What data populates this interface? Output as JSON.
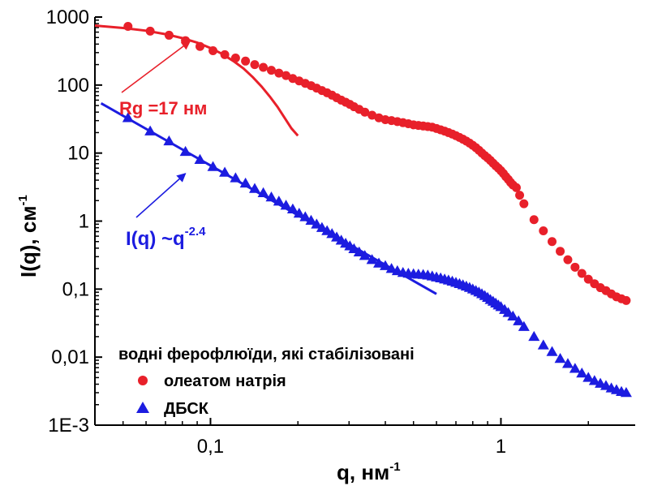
{
  "chart_data": {
    "type": "scatter",
    "x_scale": "log",
    "y_scale": "log",
    "xlim": [
      0.04,
      2.9
    ],
    "ylim": [
      0.001,
      1000
    ],
    "xlabel": "q, нм",
    "xlabel_sup": "-1",
    "ylabel": "I(q), см",
    "ylabel_sup": "-1",
    "x_ticks": [
      {
        "value": 0.1,
        "label": "0,1"
      },
      {
        "value": 1,
        "label": "1"
      }
    ],
    "y_ticks": [
      {
        "value": 1000,
        "label": "1000"
      },
      {
        "value": 100,
        "label": "100"
      },
      {
        "value": 10,
        "label": "10"
      },
      {
        "value": 1,
        "label": "1"
      },
      {
        "value": 0.1,
        "label": "0,1"
      },
      {
        "value": 0.01,
        "label": "0,01"
      },
      {
        "value": 0.001,
        "label": "1E-3"
      }
    ],
    "legend": {
      "title": "водні ферофлюїди, які стабілізовані",
      "position": "bottom-left"
    },
    "series": [
      {
        "name": "олеатом натрія",
        "marker": "circle",
        "color": "#e8202a",
        "x": [
          0.052,
          0.062,
          0.072,
          0.082,
          0.092,
          0.102,
          0.112,
          0.122,
          0.132,
          0.142,
          0.152,
          0.162,
          0.172,
          0.182,
          0.192,
          0.202,
          0.212,
          0.222,
          0.232,
          0.242,
          0.252,
          0.262,
          0.272,
          0.282,
          0.292,
          0.302,
          0.312,
          0.325,
          0.34,
          0.36,
          0.38,
          0.4,
          0.42,
          0.44,
          0.46,
          0.48,
          0.5,
          0.52,
          0.54,
          0.56,
          0.58,
          0.6,
          0.62,
          0.64,
          0.66,
          0.68,
          0.7,
          0.72,
          0.74,
          0.76,
          0.78,
          0.8,
          0.82,
          0.84,
          0.86,
          0.88,
          0.9,
          0.92,
          0.94,
          0.96,
          0.98,
          1.0,
          1.02,
          1.04,
          1.06,
          1.08,
          1.1,
          1.13,
          1.16,
          1.2,
          1.3,
          1.4,
          1.5,
          1.6,
          1.7,
          1.8,
          1.9,
          2.0,
          2.1,
          2.2,
          2.3,
          2.4,
          2.5,
          2.6,
          2.7
        ],
        "y": [
          730,
          620,
          540,
          450,
          370,
          320,
          280,
          250,
          225,
          200,
          182,
          165,
          150,
          138,
          125,
          115,
          106,
          98,
          90,
          83,
          77,
          71,
          65,
          60,
          56,
          52,
          48,
          44,
          40,
          36,
          33,
          31,
          30,
          29,
          28,
          27,
          26,
          25.5,
          25,
          24.5,
          24,
          23,
          22,
          21,
          20,
          19,
          18,
          17,
          16,
          15,
          14,
          13,
          12,
          11,
          10,
          9.2,
          8.5,
          7.8,
          7.1,
          6.5,
          6,
          5.5,
          5,
          4.5,
          4.1,
          3.7,
          3.4,
          3.1,
          2.4,
          1.8,
          1.05,
          0.72,
          0.5,
          0.36,
          0.27,
          0.21,
          0.17,
          0.14,
          0.12,
          0.105,
          0.095,
          0.085,
          0.077,
          0.072,
          0.068
        ]
      },
      {
        "name": "ДБСК",
        "marker": "triangle",
        "color": "#1c1ce0",
        "x": [
          0.052,
          0.062,
          0.072,
          0.082,
          0.092,
          0.102,
          0.112,
          0.122,
          0.132,
          0.142,
          0.152,
          0.162,
          0.172,
          0.182,
          0.192,
          0.202,
          0.212,
          0.222,
          0.232,
          0.242,
          0.252,
          0.262,
          0.272,
          0.282,
          0.292,
          0.302,
          0.312,
          0.325,
          0.34,
          0.36,
          0.38,
          0.4,
          0.42,
          0.44,
          0.46,
          0.48,
          0.5,
          0.52,
          0.54,
          0.56,
          0.58,
          0.6,
          0.62,
          0.64,
          0.66,
          0.68,
          0.7,
          0.72,
          0.74,
          0.76,
          0.78,
          0.8,
          0.82,
          0.84,
          0.86,
          0.88,
          0.9,
          0.92,
          0.94,
          0.96,
          0.98,
          1.0,
          1.03,
          1.06,
          1.1,
          1.15,
          1.2,
          1.3,
          1.4,
          1.5,
          1.6,
          1.7,
          1.8,
          1.9,
          2.0,
          2.1,
          2.2,
          2.3,
          2.4,
          2.5,
          2.6,
          2.7
        ],
        "y": [
          33,
          21,
          15,
          10.5,
          8,
          6.3,
          5.2,
          4.3,
          3.6,
          3,
          2.6,
          2.25,
          1.95,
          1.7,
          1.5,
          1.3,
          1.15,
          1.02,
          0.9,
          0.8,
          0.72,
          0.65,
          0.58,
          0.52,
          0.47,
          0.43,
          0.39,
          0.35,
          0.31,
          0.27,
          0.24,
          0.22,
          0.2,
          0.185,
          0.175,
          0.17,
          0.167,
          0.165,
          0.163,
          0.16,
          0.155,
          0.15,
          0.145,
          0.14,
          0.135,
          0.13,
          0.125,
          0.12,
          0.115,
          0.11,
          0.105,
          0.1,
          0.095,
          0.09,
          0.085,
          0.08,
          0.075,
          0.07,
          0.066,
          0.062,
          0.058,
          0.055,
          0.05,
          0.045,
          0.04,
          0.034,
          0.028,
          0.02,
          0.015,
          0.012,
          0.0095,
          0.008,
          0.0068,
          0.0058,
          0.005,
          0.0045,
          0.0041,
          0.0038,
          0.0035,
          0.0033,
          0.0031,
          0.003
        ]
      }
    ],
    "fit_lines": [
      {
        "color": "#e8202a",
        "x": [
          0.04,
          0.05,
          0.06,
          0.07,
          0.08,
          0.09,
          0.1,
          0.11,
          0.12,
          0.13,
          0.14,
          0.15,
          0.16,
          0.17,
          0.18,
          0.19,
          0.2
        ],
        "y": [
          750,
          690,
          630,
          560,
          490,
          420,
          350,
          285,
          225,
          175,
          130,
          95,
          68,
          48,
          33,
          23,
          18
        ]
      },
      {
        "color": "#1c1ce0",
        "x": [
          0.042,
          0.6
        ],
        "y": [
          54,
          0.085
        ]
      }
    ],
    "annotations": [
      {
        "text": "Rg =17 нм",
        "color": "#e8202a",
        "arrow_to": [
          0.085,
          440
        ]
      },
      {
        "text": "I(q) ~q",
        "sup": "-2.4",
        "color": "#1c1ce0",
        "arrow_to": [
          0.082,
          5
        ]
      }
    ]
  }
}
